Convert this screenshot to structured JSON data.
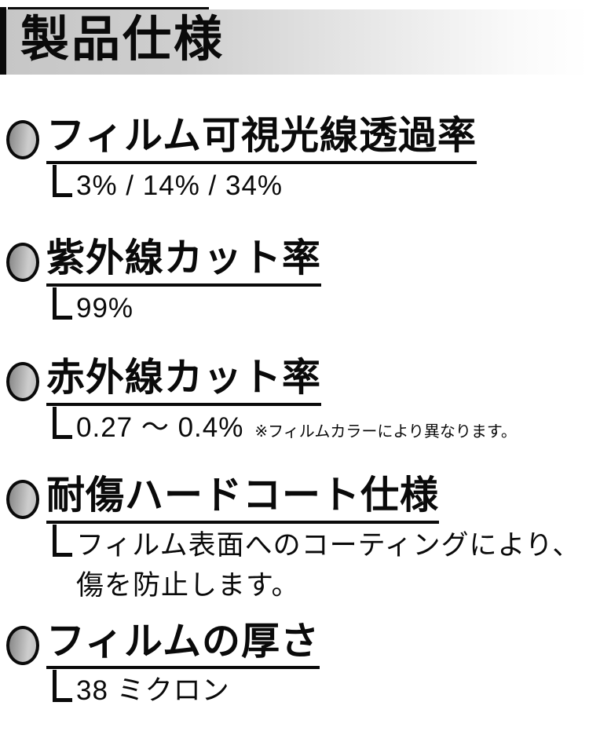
{
  "header": {
    "title": "製品仕様"
  },
  "sections": [
    {
      "title": "フィルム可視光線透過率",
      "value": "3% / 14% / 34%"
    },
    {
      "title": "紫外線カット率",
      "value": "99%"
    },
    {
      "title": "赤外線カット率",
      "value": "0.27 ～ 0.4%",
      "note": "※フィルムカラーにより異なります。"
    },
    {
      "title": "耐傷ハードコート仕様",
      "value": "フィルム表面へのコーティングにより、",
      "value_line2": "傷を防止します。"
    },
    {
      "title": "フィルムの厚さ",
      "value": "38 ミクロン"
    }
  ],
  "colors": {
    "text": "#0a0a0a",
    "header_gradient_start": "#c6c6c6",
    "header_gradient_end": "#ffffff",
    "bullet_gradient_dark": "#878787",
    "bullet_gradient_light": "#cdcdcd",
    "accent_bar": "#0a0a0a",
    "background": "#ffffff"
  }
}
